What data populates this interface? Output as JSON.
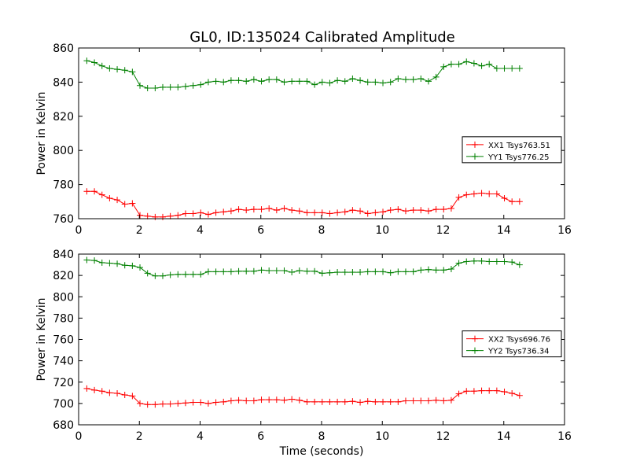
{
  "title": "GL0, ID:135024 Calibrated Amplitude",
  "colors": {
    "series_xx": "#ff0000",
    "series_yy": "#008000"
  },
  "chart_data": [
    {
      "type": "line",
      "title": "GL0, ID:135024 Calibrated Amplitude",
      "xlabel": "",
      "ylabel": "Power in Kelvin",
      "xlim": [
        0,
        16
      ],
      "ylim": [
        760,
        860
      ],
      "xticks": [
        0,
        2,
        4,
        6,
        8,
        10,
        12,
        14,
        16
      ],
      "yticks": [
        760,
        780,
        800,
        820,
        840,
        860
      ],
      "grid": false,
      "legend_position": "right",
      "marker": "+",
      "x": [
        0.27,
        0.52,
        0.77,
        1.02,
        1.27,
        1.52,
        1.77,
        2.02,
        2.27,
        2.52,
        2.77,
        3.02,
        3.27,
        3.52,
        3.77,
        4.02,
        4.27,
        4.52,
        4.77,
        5.02,
        5.27,
        5.52,
        5.77,
        6.02,
        6.27,
        6.52,
        6.77,
        7.02,
        7.27,
        7.52,
        7.77,
        8.02,
        8.27,
        8.52,
        8.77,
        9.02,
        9.27,
        9.52,
        9.77,
        10.02,
        10.27,
        10.52,
        10.77,
        11.02,
        11.27,
        11.52,
        11.77,
        12.02,
        12.27,
        12.52,
        12.77,
        13.02,
        13.27,
        13.52,
        13.77,
        14.02,
        14.27,
        14.52
      ],
      "series": [
        {
          "name": "XX1 Tsys763.51",
          "color": "#ff0000",
          "values": [
            776,
            776,
            774,
            772,
            771,
            768.5,
            769,
            762,
            761.5,
            761,
            761,
            761.5,
            762,
            763,
            763,
            763.5,
            762.5,
            763.5,
            764,
            764.5,
            765.5,
            765,
            765.5,
            765.5,
            766,
            765,
            766,
            765,
            764.5,
            763.5,
            763.5,
            763.5,
            763,
            763.5,
            764,
            765,
            764.5,
            763,
            763.5,
            764,
            765,
            765.5,
            764.5,
            765,
            765,
            764.5,
            765.5,
            765.5,
            766,
            772.5,
            774,
            774.5,
            775,
            774.5,
            774.5,
            772,
            770,
            770
          ]
        },
        {
          "name": "YY1 Tsys776.25",
          "color": "#008000",
          "values": [
            852.5,
            851.5,
            849.5,
            848,
            847.5,
            847,
            846,
            838,
            836.5,
            836.5,
            837,
            837,
            837,
            837.5,
            838,
            838.5,
            840,
            840.5,
            840,
            841,
            841,
            840.5,
            841.5,
            840.5,
            841.5,
            841.5,
            840,
            840.5,
            840.5,
            840.5,
            838.5,
            840,
            839.5,
            841,
            840.5,
            842,
            841,
            840,
            840,
            839.5,
            840,
            842,
            841.5,
            841.5,
            842,
            840.5,
            843,
            849,
            850.5,
            850.5,
            852,
            851,
            849.5,
            850.5,
            848,
            848,
            848,
            848
          ]
        }
      ]
    },
    {
      "type": "line",
      "title": "",
      "xlabel": "Time (seconds)",
      "ylabel": "Power in Kelvin",
      "xlim": [
        0,
        16
      ],
      "ylim": [
        680,
        840
      ],
      "xticks": [
        0,
        2,
        4,
        6,
        8,
        10,
        12,
        14,
        16
      ],
      "yticks": [
        680,
        700,
        720,
        740,
        760,
        780,
        800,
        820,
        840
      ],
      "grid": false,
      "legend_position": "right",
      "marker": "+",
      "x": [
        0.27,
        0.52,
        0.77,
        1.02,
        1.27,
        1.52,
        1.77,
        2.02,
        2.27,
        2.52,
        2.77,
        3.02,
        3.27,
        3.52,
        3.77,
        4.02,
        4.27,
        4.52,
        4.77,
        5.02,
        5.27,
        5.52,
        5.77,
        6.02,
        6.27,
        6.52,
        6.77,
        7.02,
        7.27,
        7.52,
        7.77,
        8.02,
        8.27,
        8.52,
        8.77,
        9.02,
        9.27,
        9.52,
        9.77,
        10.02,
        10.27,
        10.52,
        10.77,
        11.02,
        11.27,
        11.52,
        11.77,
        12.02,
        12.27,
        12.52,
        12.77,
        13.02,
        13.27,
        13.52,
        13.77,
        14.02,
        14.27,
        14.52
      ],
      "series": [
        {
          "name": "XX2 Tsys696.76",
          "color": "#ff0000",
          "values": [
            714,
            712.5,
            711.5,
            710,
            709.5,
            708,
            707,
            700,
            699,
            699,
            699.5,
            699.5,
            700,
            700.5,
            701,
            701,
            700,
            701,
            701.5,
            702.5,
            703,
            702.5,
            702.5,
            703.5,
            703.5,
            703.5,
            703,
            704,
            703,
            701.5,
            701.5,
            701.5,
            701.5,
            701.5,
            701.5,
            702,
            701,
            702,
            701.5,
            701.5,
            701.5,
            701.5,
            702.5,
            702.5,
            702.5,
            702.5,
            703,
            702.5,
            703,
            709,
            711.5,
            711.5,
            712,
            712,
            712,
            711,
            709.5,
            707.5
          ]
        },
        {
          "name": "YY2 Tsys736.34",
          "color": "#008000",
          "values": [
            834.5,
            834,
            832,
            831.5,
            831,
            829.5,
            829,
            827.5,
            822,
            819.5,
            819.5,
            820.5,
            821,
            821,
            821,
            821,
            823.5,
            823.5,
            823.5,
            823.5,
            824,
            824,
            824,
            825,
            824.5,
            824.5,
            824.5,
            823,
            824.5,
            824,
            824,
            822,
            822.5,
            823,
            823,
            823,
            823,
            823.5,
            823.5,
            823.5,
            822.5,
            823.5,
            823.5,
            823.5,
            825,
            825.5,
            825,
            825,
            826,
            831.5,
            833,
            833.5,
            833.5,
            833,
            833,
            833,
            832.5,
            830
          ]
        }
      ]
    }
  ]
}
